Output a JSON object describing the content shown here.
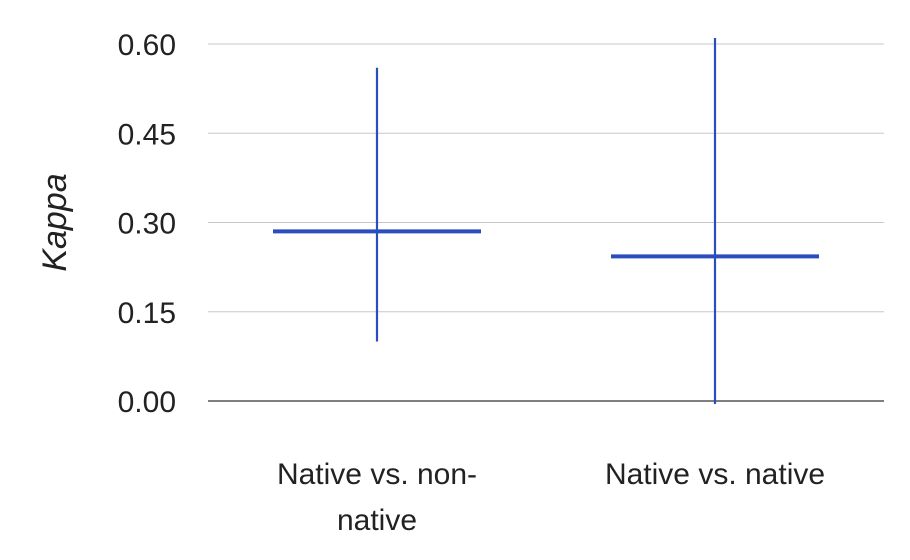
{
  "chart_data": {
    "type": "errorbar",
    "title": "",
    "xlabel": "",
    "ylabel": "Kappa",
    "ylim": [
      0,
      0.6
    ],
    "yticks": [
      "0.00",
      "0.15",
      "0.30",
      "0.45",
      "0.60"
    ],
    "categories": [
      [
        "Native vs. non-",
        "native"
      ],
      [
        "Native vs. native"
      ]
    ],
    "values": [
      0.285,
      0.243
    ],
    "lower": [
      0.1,
      -0.005
    ],
    "upper": [
      0.56,
      0.61
    ],
    "grid": true,
    "legend": "none",
    "colors": {
      "series": "#2a4fbd",
      "grid": "#c8c8c8",
      "baseline": "#333333"
    }
  }
}
